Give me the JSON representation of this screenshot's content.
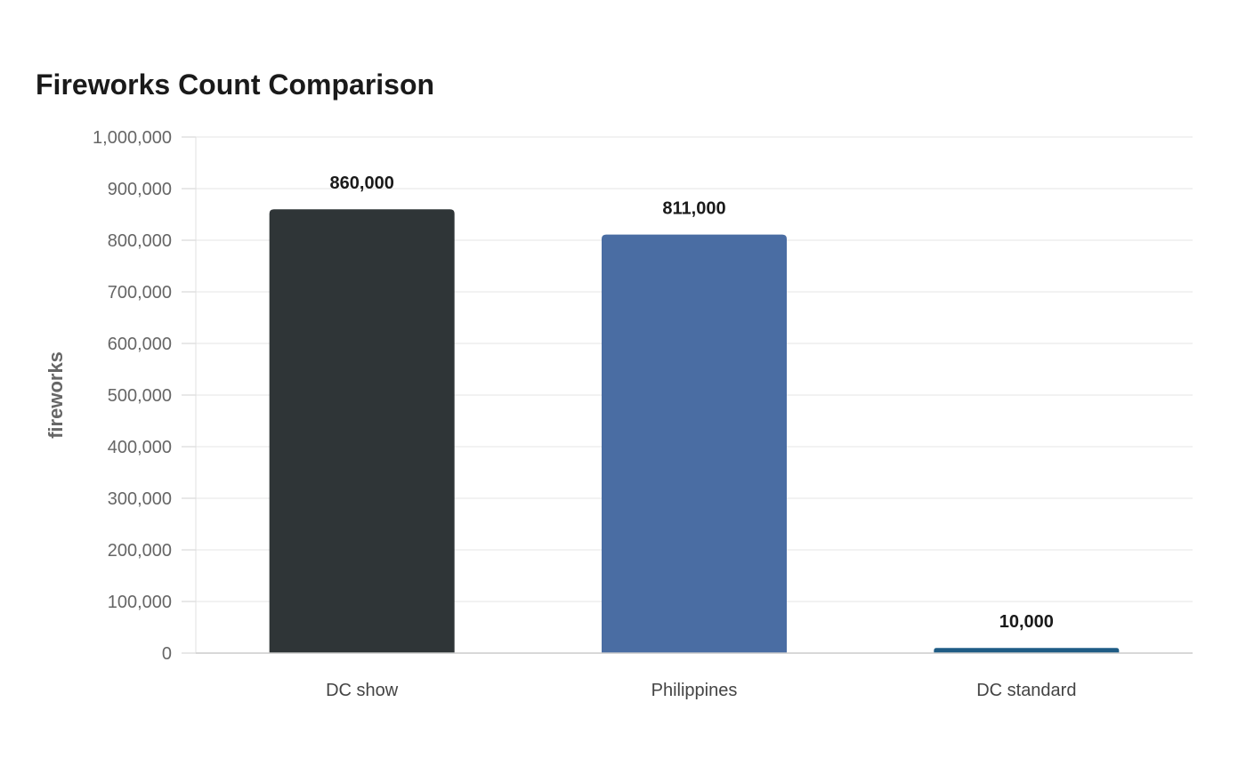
{
  "chart_data": {
    "type": "bar",
    "title": "Fireworks Count Comparison",
    "xlabel": "",
    "ylabel": "fireworks",
    "categories": [
      "DC show",
      "Philippines",
      "DC standard"
    ],
    "values": [
      860000,
      811000,
      10000
    ],
    "value_labels": [
      "860,000",
      "811,000",
      "10,000"
    ],
    "ylim": [
      0,
      1000000
    ],
    "yticks": [
      0,
      100000,
      200000,
      300000,
      400000,
      500000,
      600000,
      700000,
      800000,
      900000,
      1000000
    ],
    "ytick_labels": [
      "0",
      "100,000",
      "200,000",
      "300,000",
      "400,000",
      "500,000",
      "600,000",
      "700,000",
      "800,000",
      "900,000",
      "1,000,000"
    ],
    "bar_colors": [
      "#2f3537",
      "#4a6da3",
      "#1f5c85"
    ],
    "grid": true,
    "legend": "none"
  }
}
